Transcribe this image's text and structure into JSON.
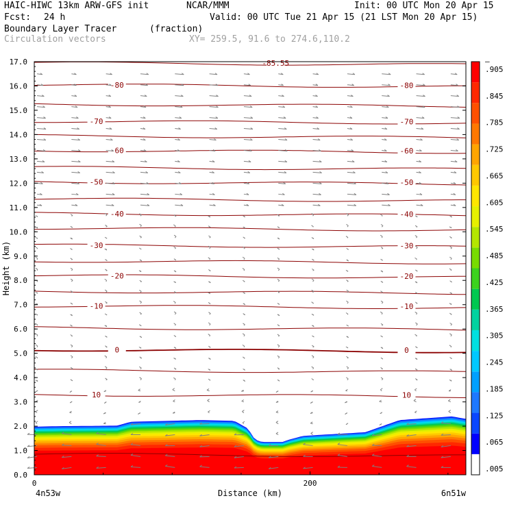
{
  "header": {
    "title": "HAIC-HIWC 13km ARW-GFS init",
    "org": "NCAR/MMM",
    "init": "Init: 00 UTC Mon 20 Apr 15",
    "fcst_label": "Fcst:",
    "fcst_value": "24 h",
    "valid": "Valid: 00 UTC Tue 21 Apr 15 (21 LST Mon 20 Apr 15)",
    "field_name": "Boundary Layer Tracer",
    "field_units": "(fraction)",
    "vector_name": "Circulation vectors",
    "xy_range": "XY= 259.5, 91.6 to 274.6,110.2"
  },
  "colors": {
    "contour": "#8b0000",
    "vector": "#808080",
    "colorbar": [
      "#ffffff",
      "#0000ff",
      "#0a46ff",
      "#1e78ff",
      "#00a0ff",
      "#00c8ff",
      "#00e0e0",
      "#00d2a0",
      "#00c850",
      "#3cd21e",
      "#78dc00",
      "#b4e600",
      "#e6f000",
      "#ffe600",
      "#ffc800",
      "#ffa500",
      "#ff7800",
      "#ff5000",
      "#ff2800",
      "#ff0000"
    ]
  },
  "chart_data": {
    "type": "heatmap",
    "title": "Boundary Layer Tracer (fraction)",
    "xlabel": "Distance (km)",
    "ylabel": "Height (km)",
    "xlim": [
      0,
      313
    ],
    "ylim": [
      0,
      17
    ],
    "x_ticks": [
      "0",
      "200"
    ],
    "y_ticks": [
      "0.0",
      "1.0",
      "2.0",
      "3.0",
      "4.0",
      "5.0",
      "6.0",
      "7.0",
      "8.0",
      "9.0",
      "10.0",
      "11.0",
      "12.0",
      "13.0",
      "14.0",
      "15.0",
      "16.0",
      "17.0"
    ],
    "x_endpoints": {
      "left": "4n53w",
      "right": "6n51w"
    },
    "colorbar_labels": [
      ".005",
      ".065",
      ".125",
      ".185",
      ".245",
      ".305",
      ".365",
      ".425",
      ".485",
      ".545",
      ".605",
      ".665",
      ".725",
      ".785",
      ".845",
      ".905",
      "–"
    ],
    "bl_top_km": [
      [
        0,
        1.98
      ],
      [
        20,
        2.0
      ],
      [
        60,
        2.02
      ],
      [
        70,
        2.18
      ],
      [
        120,
        2.25
      ],
      [
        145,
        2.22
      ],
      [
        155,
        1.9
      ],
      [
        160,
        1.45
      ],
      [
        165,
        1.35
      ],
      [
        180,
        1.35
      ],
      [
        185,
        1.45
      ],
      [
        195,
        1.6
      ],
      [
        210,
        1.65
      ],
      [
        240,
        1.75
      ],
      [
        250,
        1.95
      ],
      [
        265,
        2.25
      ],
      [
        290,
        2.35
      ],
      [
        303,
        2.4
      ],
      [
        313,
        2.3
      ]
    ],
    "temperature_contours": [
      {
        "label": "10",
        "km": 3.3
      },
      {
        "label": "0",
        "km": 5.15
      },
      {
        "label": "-10",
        "km": 6.95
      },
      {
        "label": "-20",
        "km": 8.2
      },
      {
        "label": "-30",
        "km": 9.45
      },
      {
        "label": "-40",
        "km": 10.75
      },
      {
        "label": "-50",
        "km": 12.05
      },
      {
        "label": "-60",
        "km": 13.35
      },
      {
        "label": "-70",
        "km": 14.55
      },
      {
        "label": "-80",
        "km": 16.05
      },
      {
        "label": "-85.55",
        "km": 16.95
      }
    ],
    "extra_contour_km": [
      0.85,
      4.3,
      6.05,
      7.55,
      8.8,
      10.15,
      11.35,
      12.65,
      13.95,
      15.25
    ]
  }
}
